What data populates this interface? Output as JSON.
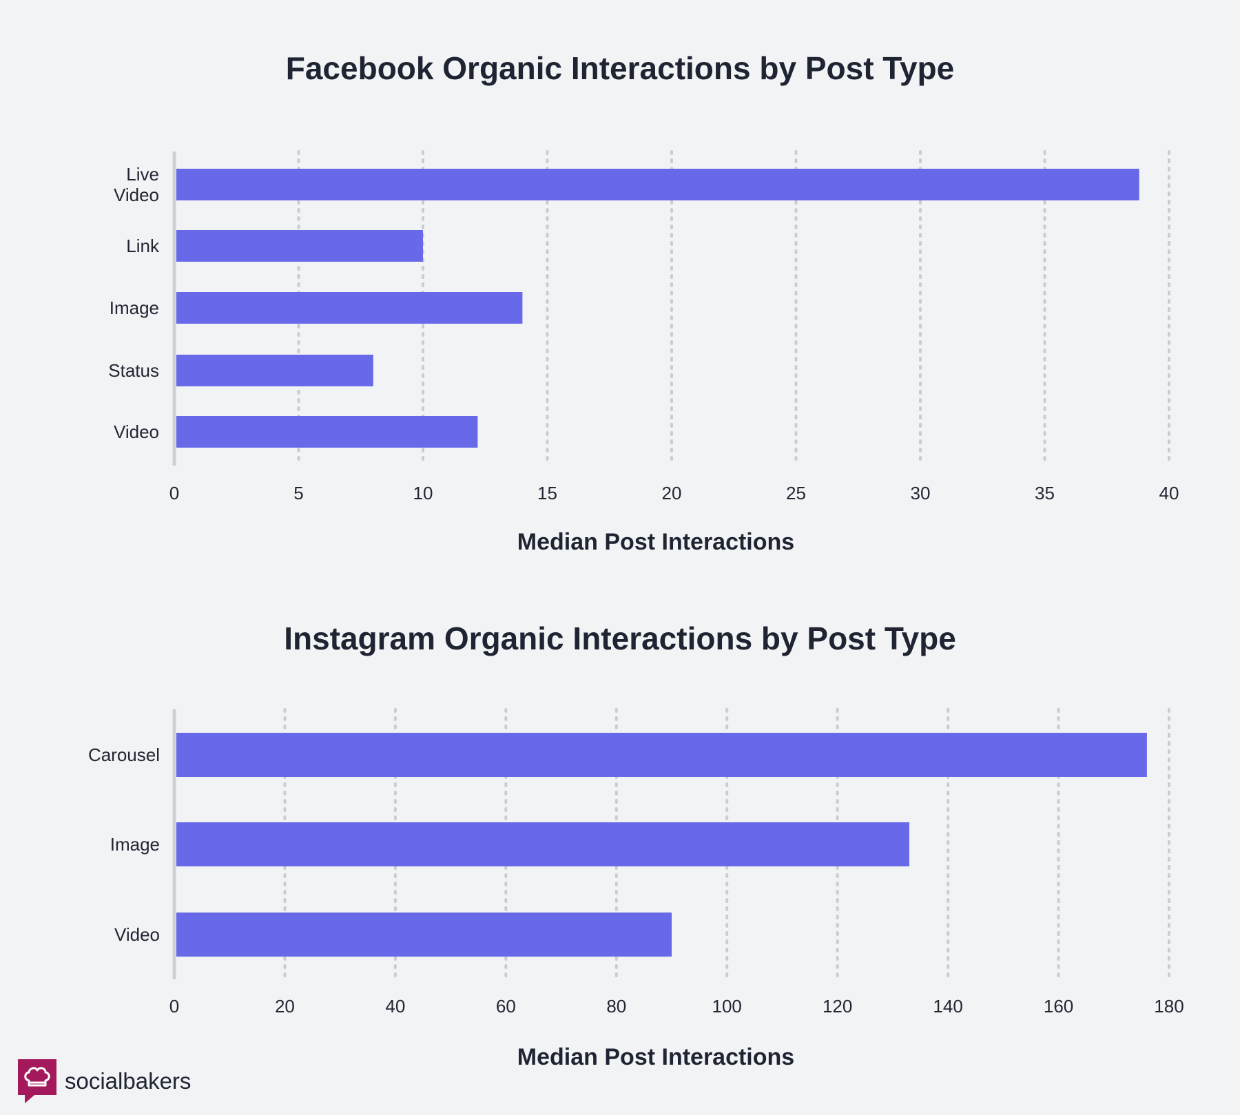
{
  "colors": {
    "bar": "#6769e8",
    "background": "#f2f3f5",
    "grid": "#c9ccd3",
    "axis": "#cdd0d6",
    "brand": "#a3195b"
  },
  "brand": {
    "name": "socialbakers",
    "icon": "chef-hat-speech-bubble-icon"
  },
  "chart_data": [
    {
      "type": "bar",
      "orientation": "horizontal",
      "title": "Facebook Organic Interactions by Post Type",
      "xlabel": "Median Post Interactions",
      "ylabel": "",
      "categories": [
        [
          "Live",
          "Video"
        ],
        [
          "Link"
        ],
        [
          "Image"
        ],
        [
          "Status"
        ],
        [
          "Video"
        ]
      ],
      "values": [
        38.8,
        10,
        14,
        8,
        12.2
      ],
      "xlim": [
        0,
        40
      ],
      "ticks": [
        0,
        5,
        10,
        15,
        20,
        25,
        30,
        35,
        40
      ],
      "grid": true
    },
    {
      "type": "bar",
      "orientation": "horizontal",
      "title": "Instagram Organic Interactions by Post Type",
      "xlabel": "Median Post Interactions",
      "ylabel": "",
      "categories": [
        [
          "Carousel"
        ],
        [
          "Image"
        ],
        [
          "Video"
        ]
      ],
      "values": [
        176,
        133,
        90
      ],
      "xlim": [
        0,
        180
      ],
      "ticks": [
        0,
        20,
        40,
        60,
        80,
        100,
        120,
        140,
        160,
        180
      ],
      "grid": true
    }
  ]
}
